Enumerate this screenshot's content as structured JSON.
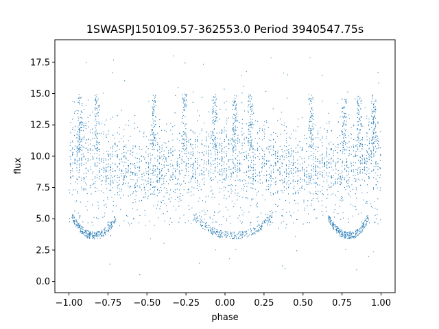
{
  "chart_data": {
    "type": "scatter",
    "title": "1SWASPJ150109.57-362553.0 Period 3940547.75s",
    "xlabel": "phase",
    "ylabel": "flux",
    "xlim": [
      -1.09,
      1.09
    ],
    "ylim": [
      -0.9,
      19.3
    ],
    "xticks": [
      -1.0,
      -0.75,
      -0.5,
      -0.25,
      0.0,
      0.25,
      0.5,
      0.75,
      1.0
    ],
    "xtick_labels": [
      "−1.00",
      "−0.75",
      "−0.50",
      "−0.25",
      "0.00",
      "0.25",
      "0.50",
      "0.75",
      "1.00"
    ],
    "yticks": [
      0.0,
      2.5,
      5.0,
      7.5,
      10.0,
      12.5,
      15.0,
      17.5
    ],
    "ytick_labels": [
      "0.0",
      "2.5",
      "5.0",
      "7.5",
      "10.0",
      "12.5",
      "15.0",
      "17.5"
    ],
    "point_color": "#1f77b4",
    "grid": false,
    "legend": "none",
    "series": [
      {
        "description_points": "phase-folded light curve, folded twice (phase -1 to 1)",
        "features": {
          "main_band": {
            "x_range": [
              -1.0,
              1.0
            ],
            "y_center": 9.3,
            "y_spread": 1.8
          },
          "low_arcs_x": [
            [
              -0.98,
              -0.7
            ],
            [
              -0.2,
              0.3
            ],
            [
              0.66,
              0.92
            ]
          ],
          "low_arc_y": [
            3.7,
            5.2
          ],
          "high_streaks_x": [
            -0.93,
            -0.82,
            -0.46,
            -0.26,
            -0.07,
            0.06,
            0.16,
            0.55,
            0.76,
            0.86,
            0.95
          ],
          "high_streak_y": [
            12.0,
            15.0
          ]
        }
      }
    ]
  }
}
